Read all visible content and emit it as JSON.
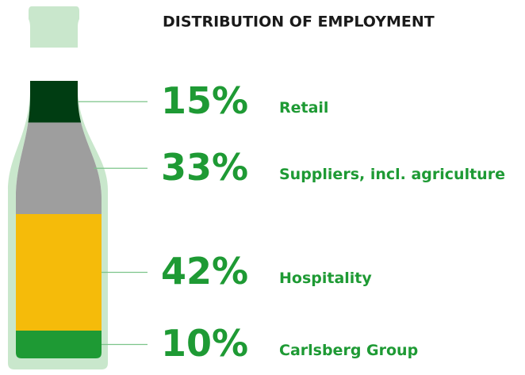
{
  "chart_data": {
    "type": "stacked-bottle",
    "title": "DISTRIBUTION OF EMPLOYMENT",
    "categories": [
      "Retail",
      "Suppliers, incl. agriculture",
      "Hospitality",
      "Carlsberg Group"
    ],
    "values": [
      15,
      33,
      42,
      10
    ],
    "value_labels": [
      "15%",
      "33%",
      "42%",
      "10%"
    ],
    "colors": [
      "#003d12",
      "#9e9e9e",
      "#f5bb0a",
      "#1e9a34"
    ]
  }
}
